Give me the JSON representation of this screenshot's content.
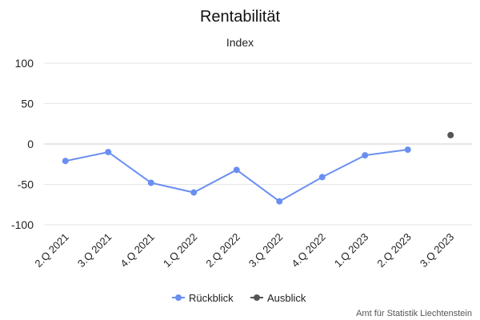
{
  "chart_data": {
    "type": "line",
    "title": "Rentabilität",
    "subtitle": "Index",
    "categories": [
      "2.Q 2021",
      "3.Q 2021",
      "4.Q 2021",
      "1.Q 2022",
      "2.Q 2022",
      "3.Q 2022",
      "4.Q 2022",
      "1.Q 2023",
      "2.Q 2023",
      "3.Q 2023"
    ],
    "yticks": [
      "100",
      "50",
      "0",
      "-50",
      "-100"
    ],
    "ylim": [
      -100,
      100
    ],
    "grid": true,
    "legend_position": "bottom",
    "series": [
      {
        "name": "Rückblick",
        "color": "#6a8ff0",
        "values": [
          -21,
          -10,
          -48,
          -60,
          -32,
          -71,
          -41,
          -14,
          -7,
          null
        ]
      },
      {
        "name": "Ausblick",
        "color": "#555555",
        "values": [
          null,
          null,
          null,
          null,
          null,
          null,
          null,
          null,
          null,
          11
        ]
      }
    ],
    "credit": "Amt für Statistik Liechtenstein"
  }
}
